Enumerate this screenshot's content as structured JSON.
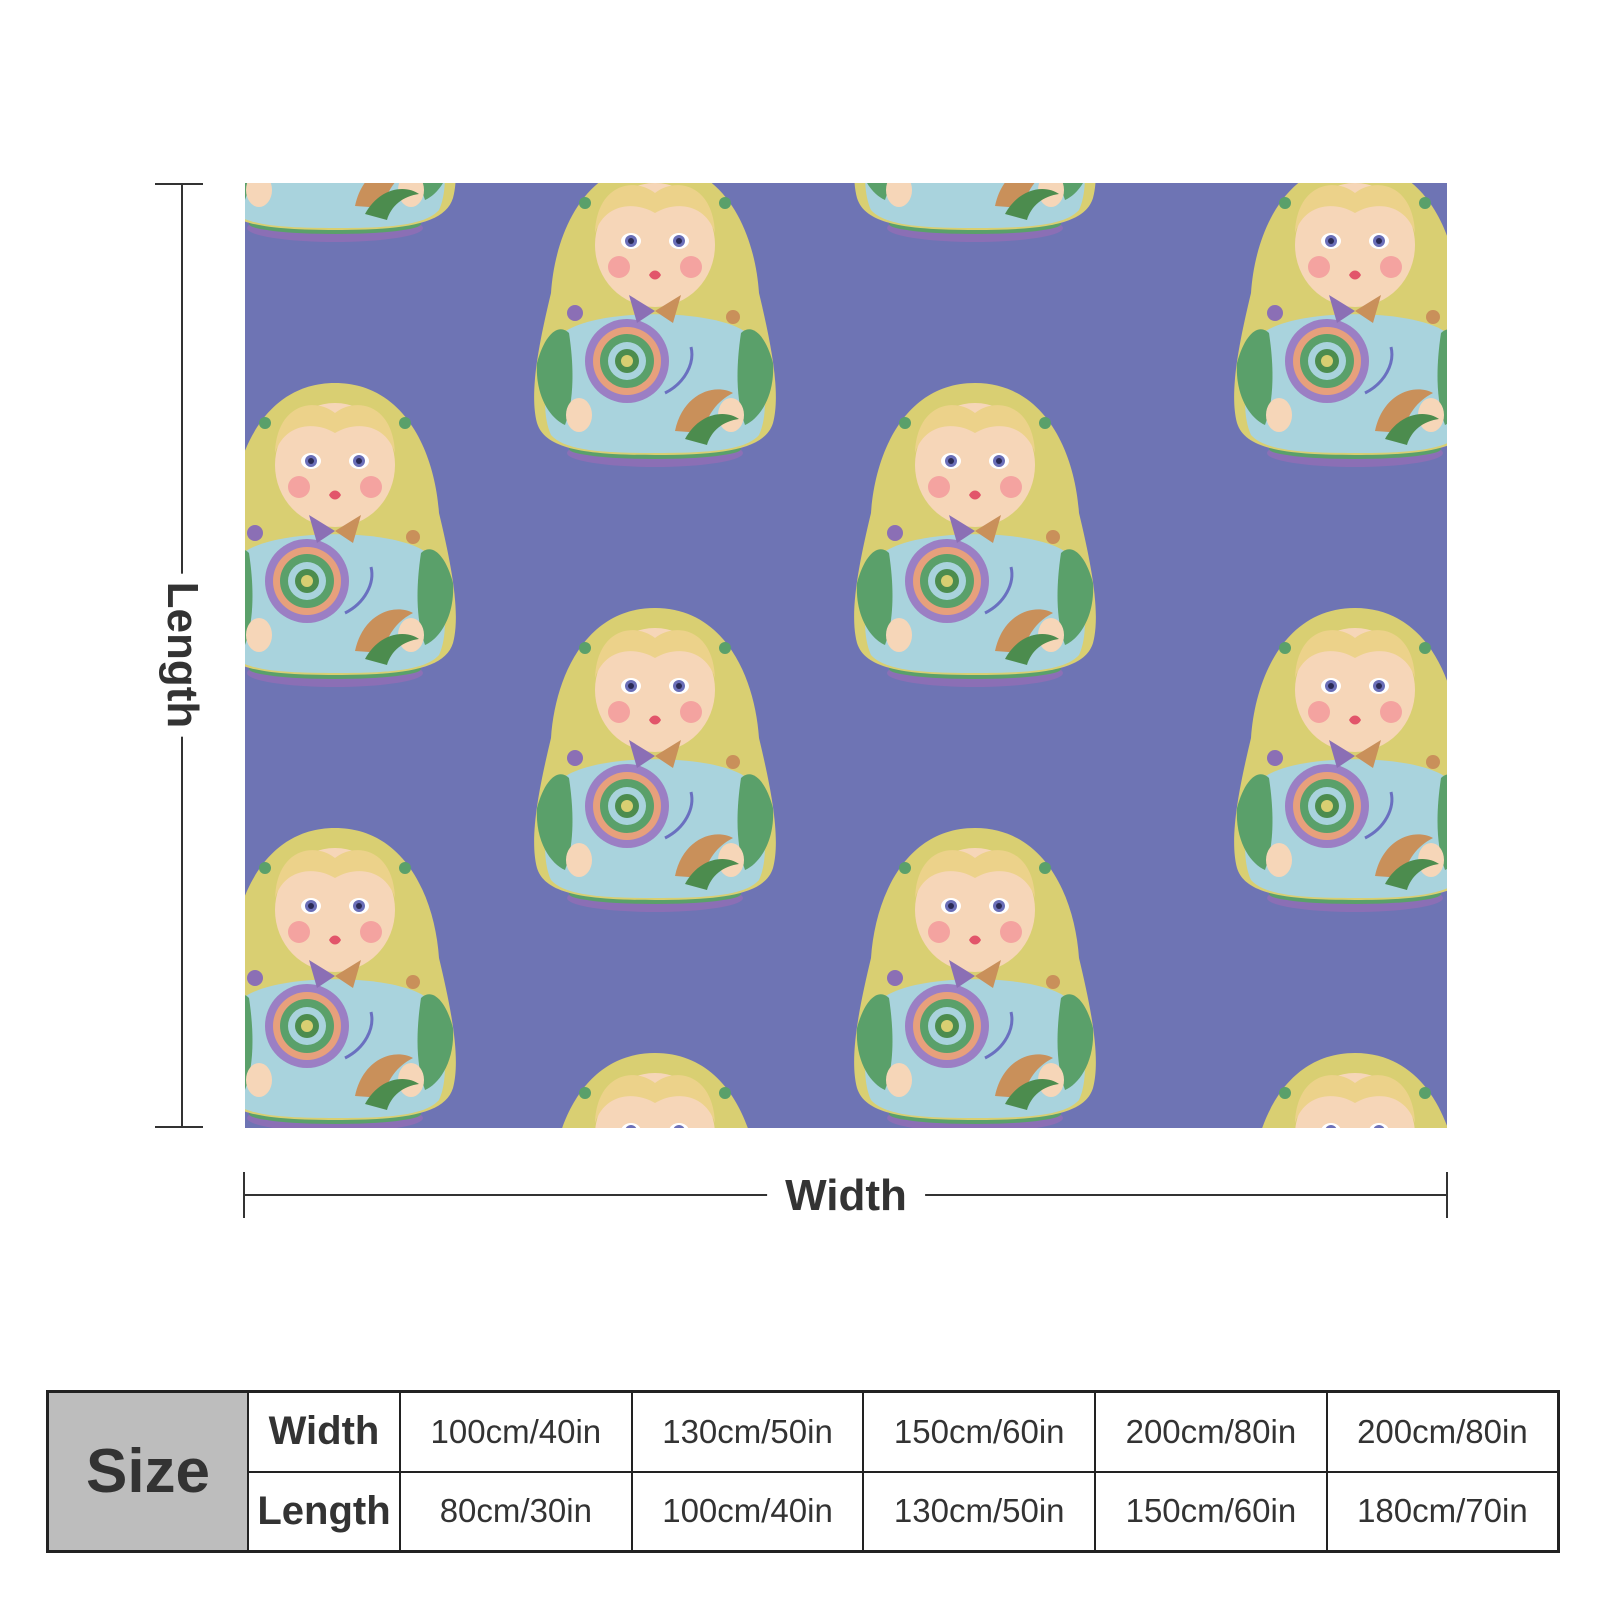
{
  "blanket": {
    "pattern": "matryoshka-dolls",
    "background_color": "#6e74b4",
    "scarf_color": "#d9cf72",
    "dress_color": "#a9d3dd",
    "leaf_color": "#5aa06a"
  },
  "dimensions": {
    "length_label": "Length",
    "width_label": "Width"
  },
  "size_table": {
    "header": "Size",
    "rows": [
      {
        "label": "Width",
        "values": [
          "100cm/40in",
          "130cm/50in",
          "150cm/60in",
          "200cm/80in",
          "200cm/80in"
        ]
      },
      {
        "label": "Length",
        "values": [
          "80cm/30in",
          "100cm/40in",
          "130cm/50in",
          "150cm/60in",
          "180cm/70in"
        ]
      }
    ]
  }
}
